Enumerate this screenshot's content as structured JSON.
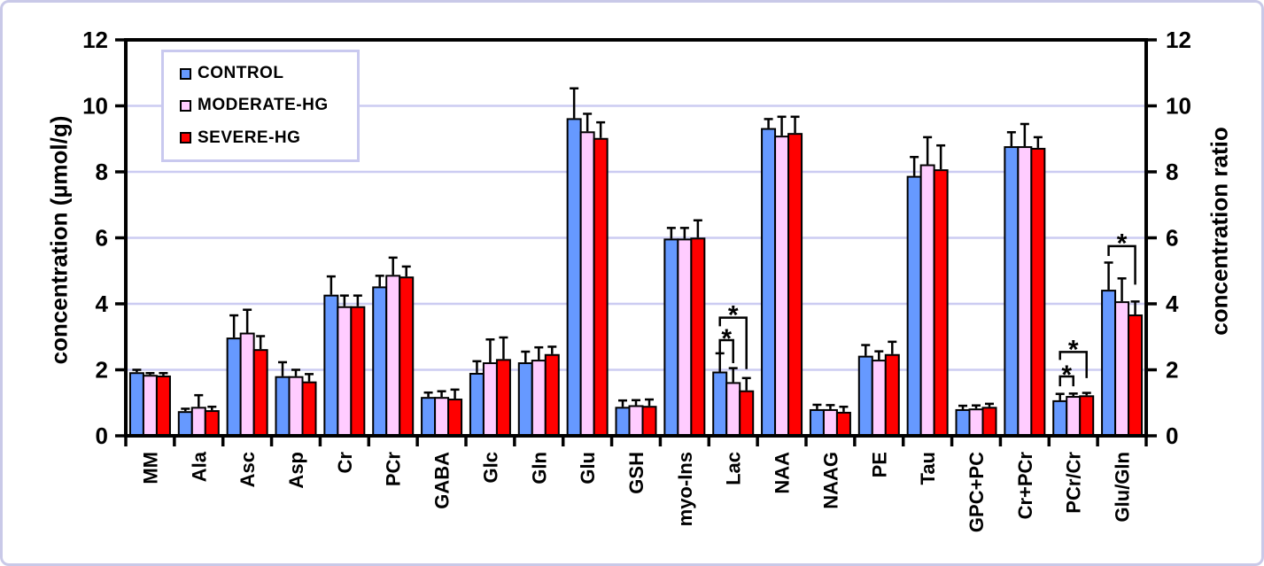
{
  "chart_data": {
    "type": "bar",
    "title": "",
    "left_axis": {
      "label": "concentration (µmol/g)",
      "ticks": [
        0,
        2,
        4,
        6,
        8,
        10,
        12
      ],
      "range": [
        0,
        12
      ]
    },
    "right_axis": {
      "label": "concentration ratio",
      "ticks": [
        0,
        2,
        4,
        6,
        8,
        10,
        12
      ],
      "range": [
        0,
        12
      ]
    },
    "grid": "horizontal gridlines every 2 units",
    "legend_position": "top-left inside plot area",
    "categories": [
      "MM",
      "Ala",
      "Asc",
      "Asp",
      "Cr",
      "PCr",
      "GABA",
      "Glc",
      "Gln",
      "Glu",
      "GSH",
      "myo-Ins",
      "Lac",
      "NAA",
      "NAAG",
      "PE",
      "Tau",
      "GPC+PC",
      "Cr+PCr",
      "PCr/Cr",
      "Glu/Gln"
    ],
    "series": [
      {
        "name": "CONTROL",
        "color": "#6699FF",
        "values": [
          1.9,
          0.72,
          2.95,
          1.78,
          4.25,
          4.5,
          1.15,
          1.88,
          2.2,
          9.6,
          0.85,
          5.95,
          1.92,
          9.3,
          0.78,
          2.4,
          7.85,
          0.78,
          8.75,
          1.05,
          4.4
        ],
        "errors": [
          0.1,
          0.1,
          0.7,
          0.45,
          0.58,
          0.35,
          0.16,
          0.38,
          0.35,
          0.93,
          0.22,
          0.35,
          0.58,
          0.3,
          0.16,
          0.35,
          0.6,
          0.13,
          0.45,
          0.22,
          0.85
        ]
      },
      {
        "name": "MODERATE-HG",
        "color": "#FFCCFF",
        "values": [
          1.82,
          0.85,
          3.1,
          1.78,
          3.9,
          4.85,
          1.15,
          2.2,
          2.28,
          9.2,
          0.9,
          5.95,
          1.6,
          9.07,
          0.78,
          2.28,
          8.2,
          0.8,
          8.75,
          1.18,
          4.05
        ],
        "errors": [
          0.08,
          0.38,
          0.72,
          0.22,
          0.35,
          0.55,
          0.2,
          0.72,
          0.4,
          0.56,
          0.18,
          0.35,
          0.45,
          0.6,
          0.15,
          0.28,
          0.85,
          0.12,
          0.7,
          0.1,
          0.72
        ]
      },
      {
        "name": "SEVERE-HG",
        "color": "#FF0000",
        "values": [
          1.8,
          0.75,
          2.6,
          1.62,
          3.9,
          4.8,
          1.1,
          2.3,
          2.45,
          9.0,
          0.88,
          5.98,
          1.35,
          9.15,
          0.7,
          2.45,
          8.05,
          0.85,
          8.7,
          1.2,
          3.65
        ],
        "errors": [
          0.1,
          0.13,
          0.42,
          0.25,
          0.35,
          0.33,
          0.3,
          0.68,
          0.25,
          0.5,
          0.22,
          0.55,
          0.4,
          0.52,
          0.18,
          0.4,
          0.75,
          0.12,
          0.35,
          0.1,
          0.42
        ]
      }
    ],
    "significance": [
      {
        "category": "Lac",
        "series_a": 0,
        "series_b": 1,
        "label": "*",
        "bracket_y": 2.9,
        "leg_a_y": 2.52,
        "leg_b_y": 2.2,
        "star_y": 3.12
      },
      {
        "category": "Lac",
        "series_a": 0,
        "series_b": 2,
        "label": "*",
        "bracket_y": 3.58,
        "leg_a_y": 3.32,
        "leg_b_y": 2.02,
        "star_y": 3.82
      },
      {
        "category": "PCr/Cr",
        "series_a": 0,
        "series_b": 1,
        "label": "*",
        "bracket_y": 1.8,
        "leg_a_y": 1.5,
        "leg_b_y": 1.5,
        "star_y": 2.02
      },
      {
        "category": "PCr/Cr",
        "series_a": 0,
        "series_b": 2,
        "label": "*",
        "bracket_y": 2.54,
        "leg_a_y": 2.3,
        "leg_b_y": 1.75,
        "star_y": 2.78
      },
      {
        "category": "Glu/Gln",
        "series_a": 0,
        "series_b": 2,
        "label": "*",
        "bracket_y": 5.75,
        "leg_a_y": 5.45,
        "leg_b_y": 4.58,
        "star_y": 6.0
      }
    ],
    "colors": {
      "grid": "#CCCCF2",
      "axis": "#000000",
      "text": "#000000",
      "outer_border": "#C9C9E8",
      "legend_border": "#C9C9EF",
      "background": "#FFFFFF"
    }
  }
}
